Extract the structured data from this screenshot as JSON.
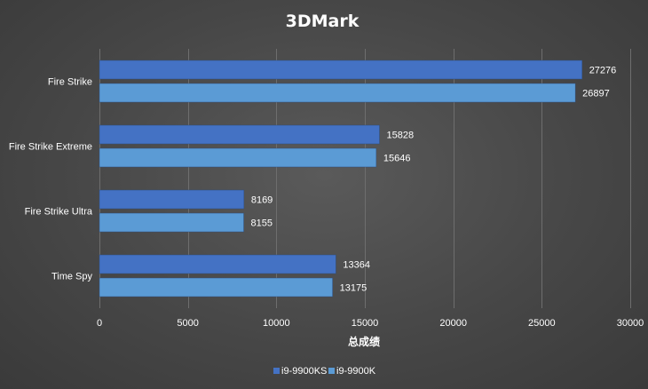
{
  "chart_data": {
    "type": "bar",
    "orientation": "horizontal",
    "title": "3DMark",
    "xlabel": "总成绩",
    "ylabel": "",
    "categories": [
      "Fire Strike",
      "Fire Strike Extreme",
      "Fire Strike Ultra",
      "Time Spy"
    ],
    "series": [
      {
        "name": "i9-9900KS",
        "color": "#4472c4",
        "values": [
          27276,
          15828,
          8169,
          13364
        ]
      },
      {
        "name": "i9-9900K",
        "color": "#5b9bd5",
        "values": [
          26897,
          15646,
          8155,
          13175
        ]
      }
    ],
    "xlim": [
      0,
      30000
    ],
    "xticks": [
      0,
      5000,
      10000,
      15000,
      20000,
      25000,
      30000
    ],
    "grid": true,
    "legend": "bottom-center"
  }
}
